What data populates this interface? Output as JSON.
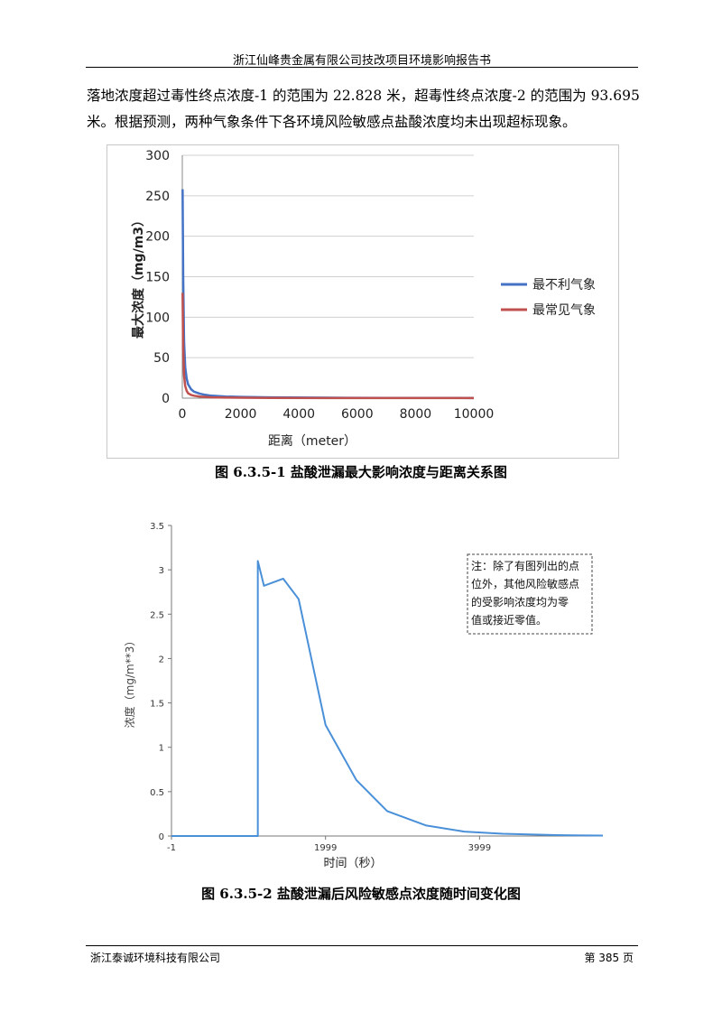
{
  "header": {
    "title": "浙江仙峰贵金属有限公司技改项目环境影响报告书"
  },
  "paragraph": {
    "line1": "落地浓度超过毒性终点浓度-1 的范围为 22.828 米，超毒性终点浓度-2 的范围为 93.695",
    "line2": "米。根据预测，两种气象条件下各环境风险敏感点盐酸浓度均未出现超标现象。"
  },
  "figure1": {
    "caption": "图 6.3.5-1  盐酸泄漏最大影响浓度与距离关系图"
  },
  "figure2": {
    "caption": "图 6.3.5-2  盐酸泄漏后风险敏感点浓度随时间变化图",
    "note": [
      "注：除了有图列出的点",
      "位外，其他风险敏感点",
      "的受影响浓度均为零",
      "值或接近零值。"
    ]
  },
  "footer": {
    "company": "浙江泰诚环境科技有限公司",
    "page": "第 385 页"
  },
  "colors": {
    "series_blue": "#4472C4",
    "series_red": "#C0504D",
    "line2": "#4A90D9"
  },
  "chart_data": [
    {
      "type": "line",
      "xlabel": "距离（meter）",
      "ylabel": "最大浓度（mg/m3）",
      "xlim": [
        0,
        10000
      ],
      "ylim": [
        0,
        300
      ],
      "xticks": [
        "0",
        "2000",
        "4000",
        "6000",
        "8000",
        "10000"
      ],
      "yticks": [
        "0",
        "50",
        "100",
        "150",
        "200",
        "250",
        "300"
      ],
      "grid": true,
      "legend_position": "right",
      "series": [
        {
          "name": "最不利气象",
          "color": "#4472C4",
          "x": [
            10,
            30,
            60,
            100,
            150,
            200,
            300,
            400,
            600,
            800,
            1000,
            1500,
            2000,
            3000,
            5000,
            7000,
            10000
          ],
          "y": [
            258,
            150,
            70,
            38,
            24,
            17,
            11,
            8,
            5.5,
            4,
            3,
            2,
            1.5,
            1,
            0.5,
            0.3,
            0.2
          ]
        },
        {
          "name": "最常见气象",
          "color": "#C0504D",
          "x": [
            10,
            30,
            60,
            100,
            150,
            200,
            300,
            400,
            600,
            800,
            1000,
            1500,
            2000,
            3000,
            5000,
            7000,
            10000
          ],
          "y": [
            130,
            60,
            28,
            15,
            9,
            6,
            4,
            3,
            2,
            1.5,
            1,
            0.7,
            0.5,
            0.3,
            0.2,
            0.1,
            0.1
          ]
        }
      ]
    },
    {
      "type": "line",
      "xlabel": "时间（秒）",
      "ylabel": "浓度（mg/m**3）",
      "xlim": [
        -1,
        5600
      ],
      "ylim": [
        0,
        3.5
      ],
      "xticks": [
        -1,
        1999,
        3999
      ],
      "yticks": [
        "0",
        "0.5",
        "1",
        "1.5",
        "2",
        "2.5",
        "3",
        "3.5"
      ],
      "grid": false,
      "series": [
        {
          "color": "#4A90D9",
          "x": [
            -1,
            1120,
            1120,
            1200,
            1450,
            1650,
            2000,
            2400,
            2800,
            3300,
            3800,
            4300,
            5000,
            5600
          ],
          "y": [
            0,
            0,
            3.1,
            2.82,
            2.9,
            2.67,
            1.25,
            0.63,
            0.28,
            0.12,
            0.05,
            0.025,
            0.01,
            0.005
          ]
        }
      ]
    }
  ]
}
